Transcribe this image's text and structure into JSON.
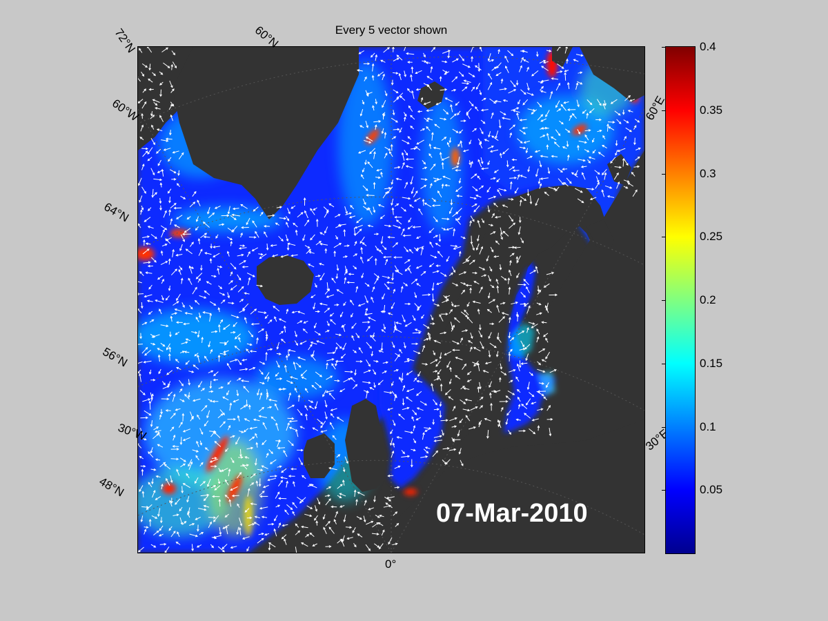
{
  "figure": {
    "title": "Every 5 vector shown",
    "date": "07-Mar-2010"
  },
  "colors": {
    "figure_background": "#c8c8c8",
    "land": "#333333",
    "low_ocean": "#0000ff",
    "arrows": "#ffffff"
  },
  "map_labels": {
    "lat_72": "72°N",
    "lat_64": "64°N",
    "lat_56": "56°N",
    "lat_48": "48°N",
    "lat_60_top": "60°N",
    "lon_60w": "60°W",
    "lon_30w": "30°W",
    "lon_0": "0°",
    "lon_60e": "60°E",
    "lon_30e": "30°E"
  },
  "colorbar": {
    "min": 0,
    "max": 0.4,
    "ticks": [
      "0.05",
      "0.1",
      "0.15",
      "0.2",
      "0.25",
      "0.3",
      "0.35",
      "0.4"
    ]
  }
}
